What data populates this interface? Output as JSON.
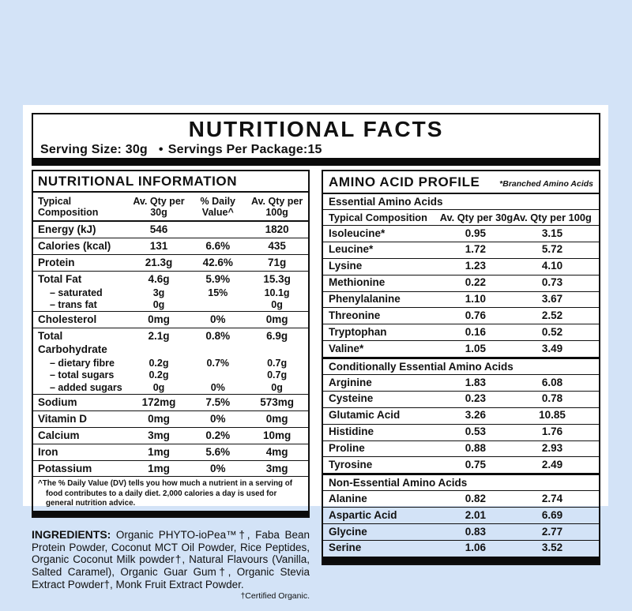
{
  "colors": {
    "background": "#d3e3f7",
    "card": "#ffffff",
    "ink": "#111111",
    "bar": "#0b0b0b"
  },
  "header": {
    "title": "NUTRITIONAL FACTS",
    "serving_size": "Serving Size: 30g",
    "bullet": "•",
    "servings_per_package": "Servings Per Package:15"
  },
  "nutritional_information": {
    "title": "NUTRITIONAL INFORMATION",
    "columns": [
      "Typical Composition",
      "Av. Qty per 30g",
      "% Daily Value^",
      "Av. Qty per 100g"
    ],
    "rows": [
      {
        "label": "Energy (kJ)",
        "qty_30g": "546",
        "daily_value": "",
        "qty_100g": "1820"
      },
      {
        "label": "Calories (kcal)",
        "qty_30g": "131",
        "daily_value": "6.6%",
        "qty_100g": "435"
      },
      {
        "label": "Protein",
        "qty_30g": "21.3g",
        "daily_value": "42.6%",
        "qty_100g": "71g"
      },
      {
        "label": "Total Fat",
        "qty_30g": "4.6g",
        "daily_value": "5.9%",
        "qty_100g": "15.3g"
      },
      {
        "label": "– saturated",
        "indent": true,
        "qty_30g": "3g",
        "daily_value": "15%",
        "qty_100g": "10.1g"
      },
      {
        "label": "– trans fat",
        "indent": true,
        "qty_30g": "0g",
        "daily_value": "",
        "qty_100g": "0g"
      },
      {
        "label": "Cholesterol",
        "qty_30g": "0mg",
        "daily_value": "0%",
        "qty_100g": "0mg"
      },
      {
        "label": "Total Carbohydrate",
        "qty_30g": "2.1g",
        "daily_value": "0.8%",
        "qty_100g": "6.9g"
      },
      {
        "label": "– dietary fibre",
        "indent": true,
        "qty_30g": "0.2g",
        "daily_value": "0.7%",
        "qty_100g": "0.7g"
      },
      {
        "label": "– total sugars",
        "indent": true,
        "qty_30g": "0.2g",
        "daily_value": "",
        "qty_100g": "0.7g"
      },
      {
        "label": "– added sugars",
        "indent": true,
        "qty_30g": "0g",
        "daily_value": "0%",
        "qty_100g": "0g"
      },
      {
        "label": "Sodium",
        "qty_30g": "172mg",
        "daily_value": "7.5%",
        "qty_100g": "573mg"
      },
      {
        "label": "Vitamin D",
        "qty_30g": "0mg",
        "daily_value": "0%",
        "qty_100g": "0mg"
      },
      {
        "label": "Calcium",
        "qty_30g": "3mg",
        "daily_value": "0.2%",
        "qty_100g": "10mg"
      },
      {
        "label": "Iron",
        "qty_30g": "1mg",
        "daily_value": "5.6%",
        "qty_100g": "4mg"
      },
      {
        "label": "Potassium",
        "qty_30g": "1mg",
        "daily_value": "0%",
        "qty_100g": "3mg"
      }
    ],
    "footnote": "^The % Daily Value (DV) tells you how much a nutrient in a serving of food contributes to a daily diet. 2,000 calories a day is used for general nutrition advice."
  },
  "ingredients": {
    "label": "INGREDIENTS:",
    "text": " Organic PHYTO-ioPea™†, Faba Bean Protein Powder, Coconut MCT Oil Powder, Rice Peptides, Organic Coconut Milk powder†, Natural Flavours (Vanilla, Salted Caramel), Organic Guar Gum†, Organic Stevia Extract Powder†, Monk Fruit Extract Powder.",
    "note": "†Certified Organic."
  },
  "amino_acid_profile": {
    "title": "AMINO ACID PROFILE",
    "note": "*Branched Amino Acids",
    "columns": [
      "Typical Composition",
      "Av. Qty per 30g",
      "Av. Qty per 100g"
    ],
    "sections": [
      {
        "name": "Essential Amino Acids",
        "rows": [
          [
            "Isoleucine*",
            "0.95",
            "3.15"
          ],
          [
            "Leucine*",
            "1.72",
            "5.72"
          ],
          [
            "Lysine",
            "1.23",
            "4.10"
          ],
          [
            "Methionine",
            "0.22",
            "0.73"
          ],
          [
            "Phenylalanine",
            "1.10",
            "3.67"
          ],
          [
            "Threonine",
            "0.76",
            "2.52"
          ],
          [
            "Tryptophan",
            "0.16",
            "0.52"
          ],
          [
            "Valine*",
            "1.05",
            "3.49"
          ]
        ]
      },
      {
        "name": "Conditionally Essential Amino Acids",
        "rows": [
          [
            "Arginine",
            "1.83",
            "6.08"
          ],
          [
            "Cysteine",
            "0.23",
            "0.78"
          ],
          [
            "Glutamic Acid",
            "3.26",
            "10.85"
          ],
          [
            "Histidine",
            "0.53",
            "1.76"
          ],
          [
            "Proline",
            "0.88",
            "2.93"
          ],
          [
            "Tyrosine",
            "0.75",
            "2.49"
          ]
        ]
      },
      {
        "name": "Non-Essential Amino Acids",
        "rows": [
          [
            "Alanine",
            "0.82",
            "2.74"
          ],
          [
            "Aspartic Acid",
            "2.01",
            "6.69"
          ],
          [
            "Glycine",
            "0.83",
            "2.77"
          ],
          [
            "Serine",
            "1.06",
            "3.52"
          ]
        ]
      }
    ]
  }
}
